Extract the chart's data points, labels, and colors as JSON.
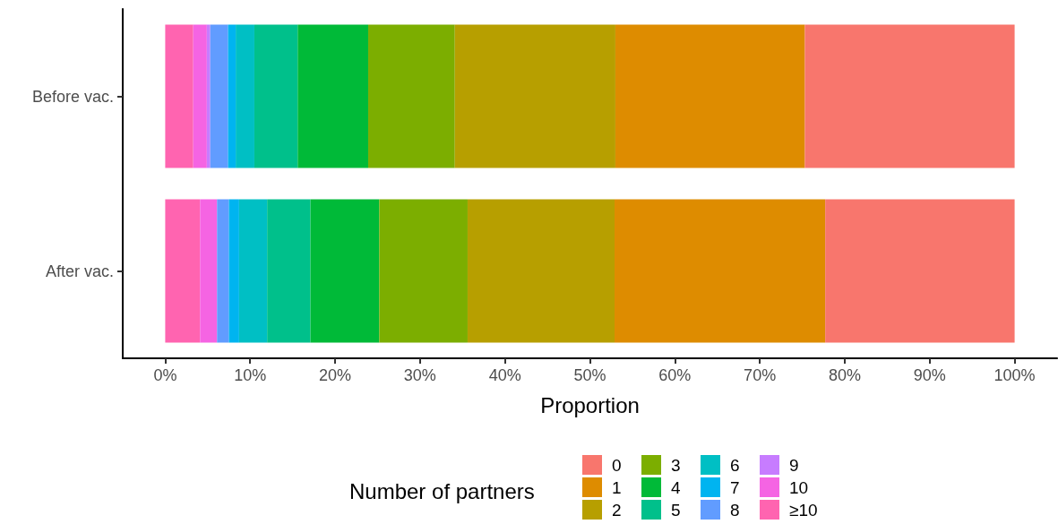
{
  "chart_data": {
    "type": "bar",
    "orientation": "horizontal",
    "stacked": true,
    "xlabel": "Proportion",
    "legend_title": "Number of partners",
    "legend": "bottom",
    "grid": false,
    "categories": [
      "Before vac.",
      "After vac."
    ],
    "xlim": [
      -5,
      105
    ],
    "xticks": [
      {
        "value": 0,
        "label": "0%"
      },
      {
        "value": 10,
        "label": "10%"
      },
      {
        "value": 20,
        "label": "20%"
      },
      {
        "value": 30,
        "label": "30%"
      },
      {
        "value": 40,
        "label": "40%"
      },
      {
        "value": 50,
        "label": "50%"
      },
      {
        "value": 60,
        "label": "60%"
      },
      {
        "value": 70,
        "label": "70%"
      },
      {
        "value": 80,
        "label": "80%"
      },
      {
        "value": 90,
        "label": "90%"
      },
      {
        "value": 100,
        "label": "100%"
      }
    ],
    "series": [
      {
        "name": "≥10",
        "color": "#ff64b0",
        "values": [
          3.3,
          4.1
        ]
      },
      {
        "name": "10",
        "color": "#f564e3",
        "values": [
          1.6,
          2.0
        ]
      },
      {
        "name": "9",
        "color": "#c77cff",
        "values": [
          0.4,
          0
        ]
      },
      {
        "name": "8",
        "color": "#619cff",
        "values": [
          2.1,
          1.4
        ]
      },
      {
        "name": "7",
        "color": "#00b4f0",
        "values": [
          0.9,
          1.2
        ]
      },
      {
        "name": "6",
        "color": "#00bfc4",
        "values": [
          2.2,
          3.3
        ]
      },
      {
        "name": "5",
        "color": "#00c08b",
        "values": [
          5.1,
          5.1
        ]
      },
      {
        "name": "4",
        "color": "#00ba38",
        "values": [
          8.3,
          8.1
        ]
      },
      {
        "name": "3",
        "color": "#7cae00",
        "values": [
          10.2,
          10.4
        ]
      },
      {
        "name": "2",
        "color": "#b79f00",
        "values": [
          18.9,
          17.3
        ]
      },
      {
        "name": "1",
        "color": "#de8c00",
        "values": [
          22.3,
          24.8
        ]
      },
      {
        "name": "0",
        "color": "#f8766d",
        "values": [
          24.7,
          22.3
        ]
      }
    ]
  }
}
